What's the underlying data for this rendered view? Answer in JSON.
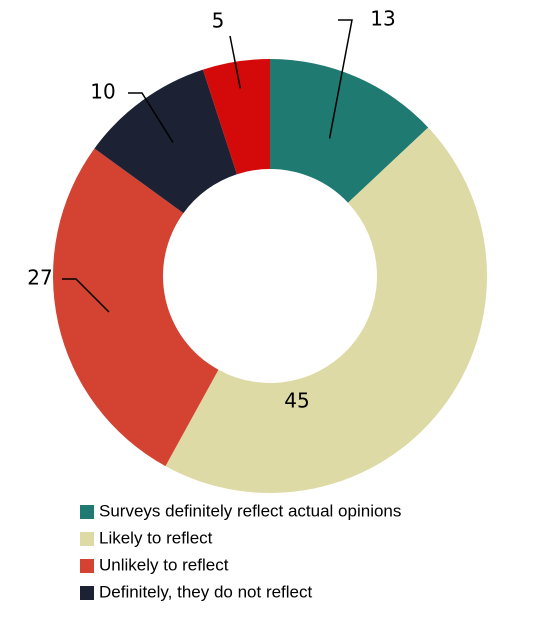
{
  "chart_data": {
    "type": "donut",
    "categories": [
      "Surveys definitely reflect actual opinions",
      "Likely to reflect",
      "Unlikely to reflect",
      "Definitely, they do not reflect",
      null
    ],
    "values": [
      13,
      45,
      27,
      10,
      5
    ],
    "colors": [
      "#1f7a72",
      "#dedaa6",
      "#d44232",
      "#1c2233",
      "#d40a0a"
    ]
  }
}
